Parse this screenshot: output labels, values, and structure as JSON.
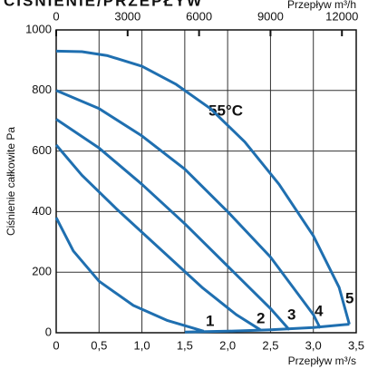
{
  "chart_data": {
    "type": "line",
    "title": "CIŚNIENIE/PRZEPŁYW",
    "x_label": "Przepływ m³/s",
    "x2_label": "Przepływ m³/h",
    "y_label": "Ciśnienie całkowite Pa",
    "annotation": "55°C",
    "xlim": [
      0,
      3.5
    ],
    "xticks": [
      0,
      {
        "value": 0.5,
        "label": "0,5"
      },
      {
        "value": 1,
        "label": "1,0"
      },
      {
        "value": 1.5,
        "label": "1,5"
      },
      {
        "value": 2,
        "label": "2,0"
      },
      {
        "value": 2.5,
        "label": "2,5"
      },
      {
        "value": 3,
        "label": "3,0"
      },
      {
        "value": 3.5,
        "label": "3,5"
      }
    ],
    "x2lim": [
      0,
      12600
    ],
    "x2ticks": [
      0,
      3000,
      6000,
      9000,
      12000
    ],
    "ylim": [
      0,
      1000
    ],
    "yticks": [
      0,
      200,
      400,
      600,
      800,
      1000
    ],
    "grid": true,
    "series": [
      {
        "name": "1",
        "color": "#1f6fb0",
        "x": [
          0,
          0.2,
          0.5,
          0.9,
          1.3,
          1.72
        ],
        "values": [
          380,
          270,
          170,
          90,
          40,
          5
        ]
      },
      {
        "name": "2",
        "color": "#1f6fb0",
        "x": [
          0,
          0.3,
          0.7,
          1.2,
          1.7,
          2.1,
          2.38
        ],
        "values": [
          620,
          520,
          410,
          280,
          150,
          60,
          10
        ]
      },
      {
        "name": "3",
        "color": "#1f6fb0",
        "x": [
          0,
          0.5,
          1.0,
          1.5,
          2.0,
          2.5,
          2.72
        ],
        "values": [
          705,
          610,
          490,
          360,
          220,
          80,
          10
        ]
      },
      {
        "name": "4",
        "color": "#1f6fb0",
        "x": [
          0,
          0.5,
          1.0,
          1.5,
          2.0,
          2.5,
          3.0,
          3.08
        ],
        "values": [
          800,
          740,
          650,
          540,
          400,
          250,
          60,
          15
        ]
      },
      {
        "name": "5",
        "color": "#1f6fb0",
        "x": [
          0,
          0.3,
          0.6,
          1.0,
          1.4,
          1.8,
          2.2,
          2.6,
          3.0,
          3.3,
          3.42
        ],
        "values": [
          930,
          928,
          915,
          880,
          820,
          740,
          630,
          490,
          320,
          150,
          28
        ]
      },
      {
        "color": "#1f6fb0",
        "x": [
          1.5,
          2.0,
          2.5,
          3.0,
          3.42
        ],
        "values": [
          2,
          5,
          10,
          17,
          28
        ]
      }
    ]
  }
}
